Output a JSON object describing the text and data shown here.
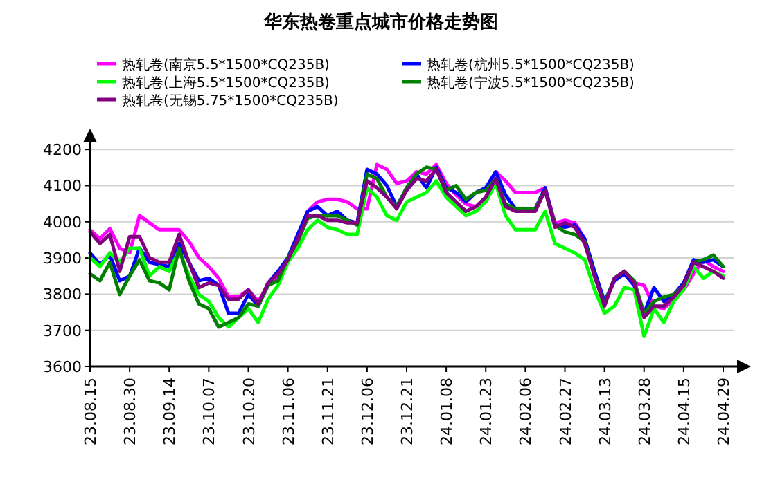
{
  "chart_data": {
    "type": "line",
    "title": "华东热卷重点城市价格走势图",
    "categories": [
      "23.08.15",
      null,
      null,
      null,
      "23.08.30",
      null,
      null,
      null,
      "23.09.14",
      null,
      null,
      null,
      "23.10.07",
      null,
      null,
      null,
      "23.10.20",
      null,
      null,
      null,
      "23.11.06",
      null,
      null,
      null,
      "23.11.21",
      null,
      null,
      null,
      "23.12.06",
      null,
      null,
      null,
      "23.12.21",
      null,
      null,
      null,
      "24.01.08",
      null,
      null,
      null,
      "24.01.23",
      null,
      null,
      null,
      "24.02.06",
      null,
      null,
      null,
      "24.02.27",
      null,
      null,
      null,
      "24.03.13",
      null,
      null,
      null,
      "24.03.28",
      null,
      null,
      null,
      "24.04.15",
      null,
      null,
      null,
      "24.04.29"
    ],
    "series": [
      {
        "name": "热轧卷(南京5.5*1500*CQ235B)",
        "color": "#ff00ff",
        "values": [
          3978,
          3953,
          3981,
          3927,
          3914,
          4017,
          3997,
          3978,
          3978,
          3978,
          3946,
          3901,
          3876,
          3844,
          3792,
          3792,
          3812,
          3780,
          3824,
          3850,
          3888,
          3940,
          4029,
          4055,
          4062,
          4062,
          4055,
          4036,
          4036,
          4158,
          4145,
          4106,
          4113,
          4138,
          4132,
          4158,
          4106,
          4074,
          4049,
          4042,
          4068,
          4138,
          4113,
          4081,
          4081,
          4081,
          4094,
          3997,
          4004,
          3997,
          3953,
          3850,
          3773,
          3837,
          3863,
          3831,
          3824,
          3767,
          3760,
          3786,
          3812,
          3856,
          3895,
          3876,
          3863
        ]
      },
      {
        "name": "热轧卷(杭州5.5*1500*CQ235B)",
        "color": "#0000ff",
        "values": [
          3914,
          3882,
          3908,
          3837,
          3850,
          3927,
          3888,
          3882,
          3876,
          3940,
          3888,
          3837,
          3844,
          3824,
          3747,
          3747,
          3799,
          3767,
          3831,
          3863,
          3901,
          3965,
          4029,
          4042,
          4017,
          4029,
          4004,
          3997,
          4145,
          4132,
          4100,
          4042,
          4094,
          4132,
          4094,
          4151,
          4094,
          4081,
          4055,
          4081,
          4094,
          4138,
          4074,
          4036,
          4036,
          4036,
          4094,
          3991,
          3985,
          3991,
          3953,
          3863,
          3780,
          3837,
          3856,
          3824,
          3747,
          3818,
          3780,
          3799,
          3831,
          3895,
          3888,
          3895,
          3876
        ]
      },
      {
        "name": "热轧卷(上海5.5*1500*CQ235B)",
        "color": "#00ff00",
        "values": [
          3901,
          3876,
          3914,
          3888,
          3927,
          3927,
          3850,
          3876,
          3863,
          3921,
          3850,
          3799,
          3780,
          3735,
          3709,
          3735,
          3760,
          3722,
          3786,
          3824,
          3888,
          3927,
          3978,
          4004,
          3985,
          3978,
          3965,
          3965,
          4094,
          4068,
          4017,
          4004,
          4055,
          4068,
          4081,
          4113,
          4068,
          4042,
          4017,
          4029,
          4055,
          4106,
          4017,
          3978,
          3978,
          3978,
          4029,
          3940,
          3927,
          3914,
          3895,
          3812,
          3747,
          3767,
          3818,
          3812,
          3683,
          3760,
          3722,
          3780,
          3812,
          3876,
          3844,
          3863,
          3850
        ]
      },
      {
        "name": "热轧卷(宁波5.5*1500*CQ235B)",
        "color": "#007f00",
        "values": [
          3856,
          3837,
          3888,
          3799,
          3850,
          3895,
          3837,
          3831,
          3812,
          3927,
          3837,
          3773,
          3760,
          3709,
          3722,
          3735,
          3773,
          3767,
          3824,
          3837,
          3901,
          3946,
          4010,
          4017,
          4017,
          4017,
          4004,
          3991,
          4132,
          4119,
          4068,
          4042,
          4094,
          4132,
          4151,
          4145,
          4087,
          4100,
          4062,
          4081,
          4087,
          4119,
          4049,
          4036,
          4036,
          4036,
          4087,
          3991,
          3972,
          3965,
          3946,
          3850,
          3773,
          3844,
          3863,
          3837,
          3747,
          3780,
          3792,
          3799,
          3824,
          3888,
          3895,
          3908,
          3876
        ]
      },
      {
        "name": "热轧卷(无锡5.75*1500*CQ235B)",
        "color": "#800080",
        "values": [
          3972,
          3940,
          3965,
          3863,
          3959,
          3959,
          3901,
          3888,
          3888,
          3965,
          3888,
          3818,
          3831,
          3824,
          3786,
          3786,
          3812,
          3773,
          3831,
          3856,
          3895,
          3953,
          4017,
          4017,
          4004,
          4004,
          3997,
          3997,
          4113,
          4094,
          4068,
          4036,
          4087,
          4119,
          4113,
          4145,
          4081,
          4055,
          4029,
          4042,
          4068,
          4119,
          4042,
          4029,
          4029,
          4029,
          4087,
          3985,
          3997,
          3985,
          3940,
          3850,
          3767,
          3844,
          3863,
          3831,
          3735,
          3767,
          3767,
          3792,
          3824,
          3888,
          3876,
          3863,
          3844
        ]
      }
    ],
    "ylim": [
      3600,
      4250
    ],
    "yticks": [
      3600,
      3700,
      3800,
      3900,
      4000,
      4100,
      4200
    ],
    "grid": "y",
    "legend": "top",
    "line_style": "solid",
    "marker": "none"
  }
}
